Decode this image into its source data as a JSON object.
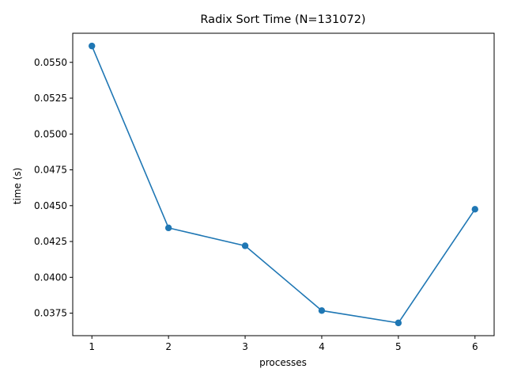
{
  "chart_data": {
    "type": "line",
    "title": "Radix Sort Time (N=131072)",
    "xlabel": "processes",
    "ylabel": "time (s)",
    "x": [
      1,
      2,
      3,
      4,
      5,
      6
    ],
    "series": [
      {
        "values": [
          0.05614,
          0.04345,
          0.0422,
          0.03768,
          0.03682,
          0.04475
        ],
        "color": "#1f77b4",
        "marker": "circle"
      }
    ],
    "xticks": [
      "1",
      "2",
      "3",
      "4",
      "5",
      "6"
    ],
    "yticks": [
      "0.0375",
      "0.0400",
      "0.0425",
      "0.0450",
      "0.0475",
      "0.0500",
      "0.0525",
      "0.0550"
    ],
    "xlim": [
      0.75,
      6.25
    ],
    "ylim": [
      0.03593,
      0.05703
    ],
    "grid": false
  }
}
